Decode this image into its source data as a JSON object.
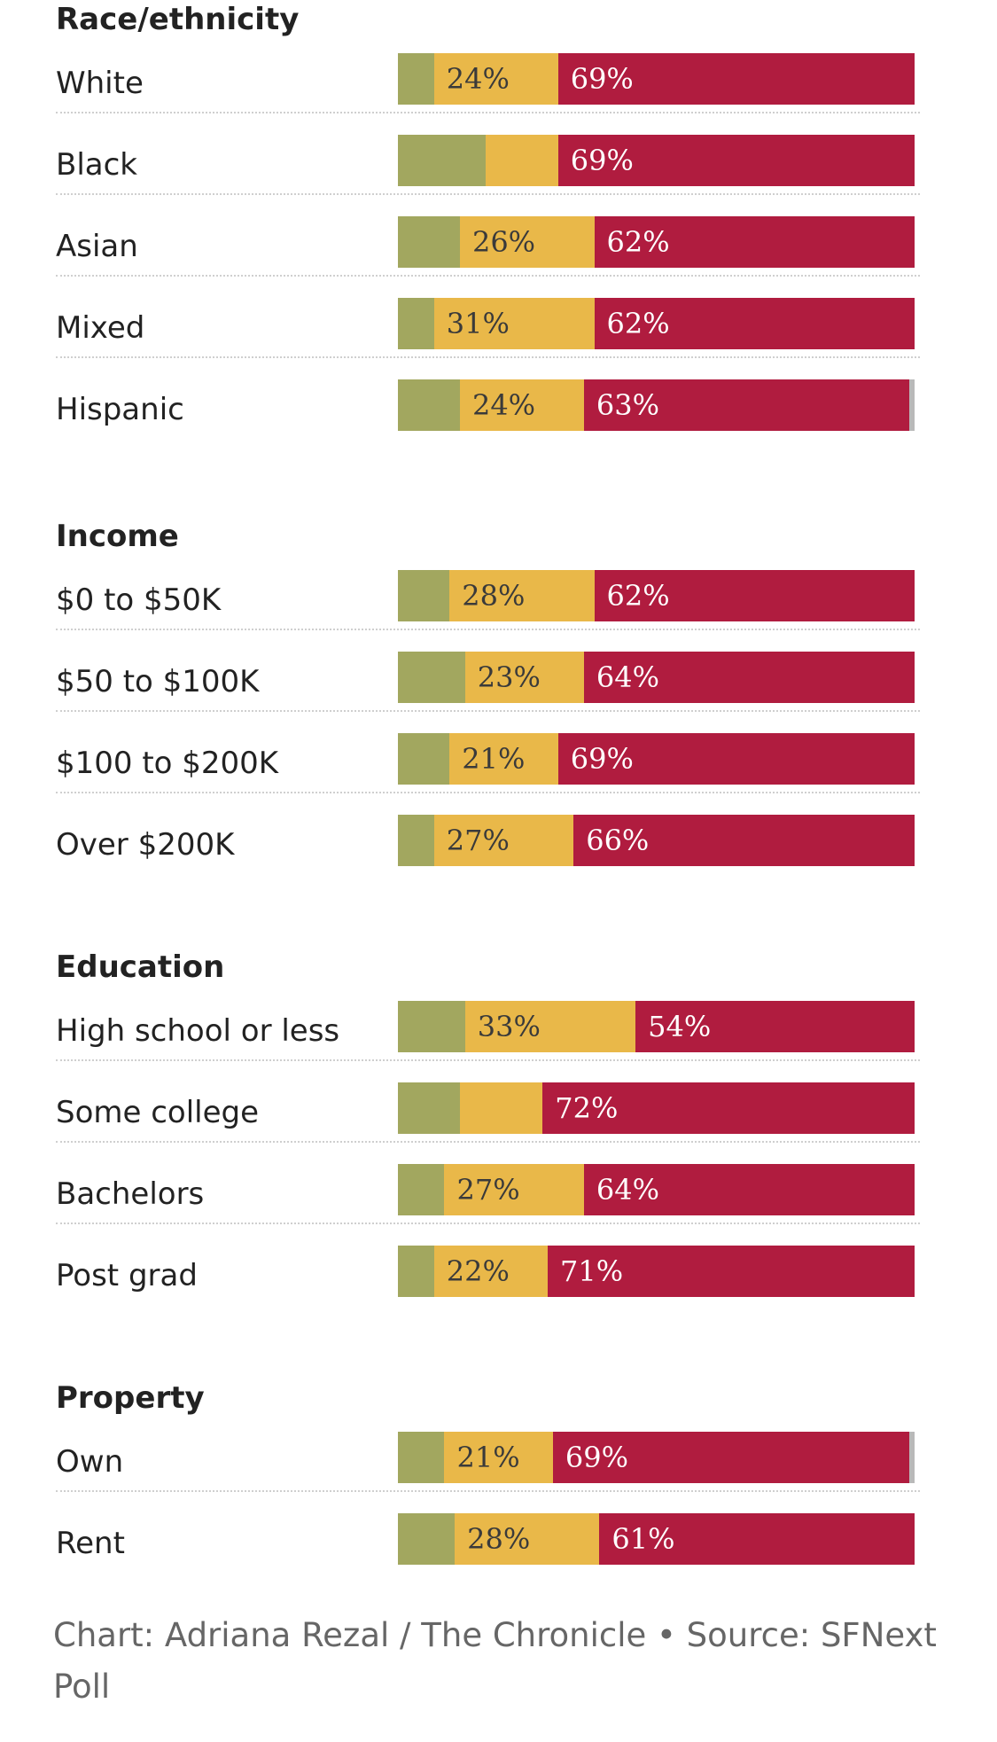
{
  "colors": {
    "left": "#a2a75f",
    "middle": "#e9b849",
    "right": "#b01c3f",
    "remainder": "#b9b9b9"
  },
  "chart_data": {
    "type": "bar",
    "orientation": "horizontal",
    "stacked": true,
    "xlim": [
      0,
      100
    ],
    "groups": [
      {
        "title": "Race/ethnicity",
        "rows": [
          {
            "label": "White",
            "left": 7,
            "middle": 24,
            "right": 69,
            "middle_label": "24%",
            "right_label": "69%"
          },
          {
            "label": "Black",
            "left": 17,
            "middle": 14,
            "right": 69,
            "middle_label": "",
            "right_label": "69%"
          },
          {
            "label": "Asian",
            "left": 12,
            "middle": 26,
            "right": 62,
            "middle_label": "26%",
            "right_label": "62%"
          },
          {
            "label": "Mixed",
            "left": 7,
            "middle": 31,
            "right": 62,
            "middle_label": "31%",
            "right_label": "62%"
          },
          {
            "label": "Hispanic",
            "left": 12,
            "middle": 24,
            "right": 63,
            "middle_label": "24%",
            "right_label": "63%"
          }
        ]
      },
      {
        "title": "Income",
        "rows": [
          {
            "label": "$0 to $50K",
            "left": 10,
            "middle": 28,
            "right": 62,
            "middle_label": "28%",
            "right_label": "62%"
          },
          {
            "label": "$50 to $100K",
            "left": 13,
            "middle": 23,
            "right": 64,
            "middle_label": "23%",
            "right_label": "64%"
          },
          {
            "label": "$100 to $200K",
            "left": 10,
            "middle": 21,
            "right": 69,
            "middle_label": "21%",
            "right_label": "69%"
          },
          {
            "label": "Over $200K",
            "left": 7,
            "middle": 27,
            "right": 66,
            "middle_label": "27%",
            "right_label": "66%"
          }
        ]
      },
      {
        "title": "Education",
        "rows": [
          {
            "label": "High school or less",
            "left": 13,
            "middle": 33,
            "right": 54,
            "middle_label": "33%",
            "right_label": "54%"
          },
          {
            "label": "Some college",
            "left": 12,
            "middle": 16,
            "right": 72,
            "middle_label": "",
            "right_label": "72%"
          },
          {
            "label": "Bachelors",
            "left": 9,
            "middle": 27,
            "right": 64,
            "middle_label": "27%",
            "right_label": "64%"
          },
          {
            "label": "Post grad",
            "left": 7,
            "middle": 22,
            "right": 71,
            "middle_label": "22%",
            "right_label": "71%"
          }
        ]
      },
      {
        "title": "Property",
        "rows": [
          {
            "label": "Own",
            "left": 9,
            "middle": 21,
            "right": 69,
            "middle_label": "21%",
            "right_label": "69%"
          },
          {
            "label": "Rent",
            "left": 11,
            "middle": 28,
            "right": 61,
            "middle_label": "28%",
            "right_label": "61%"
          }
        ]
      }
    ]
  },
  "credit": "Chart: Adriana Rezal / The Chronicle • Source: SFNext Poll"
}
